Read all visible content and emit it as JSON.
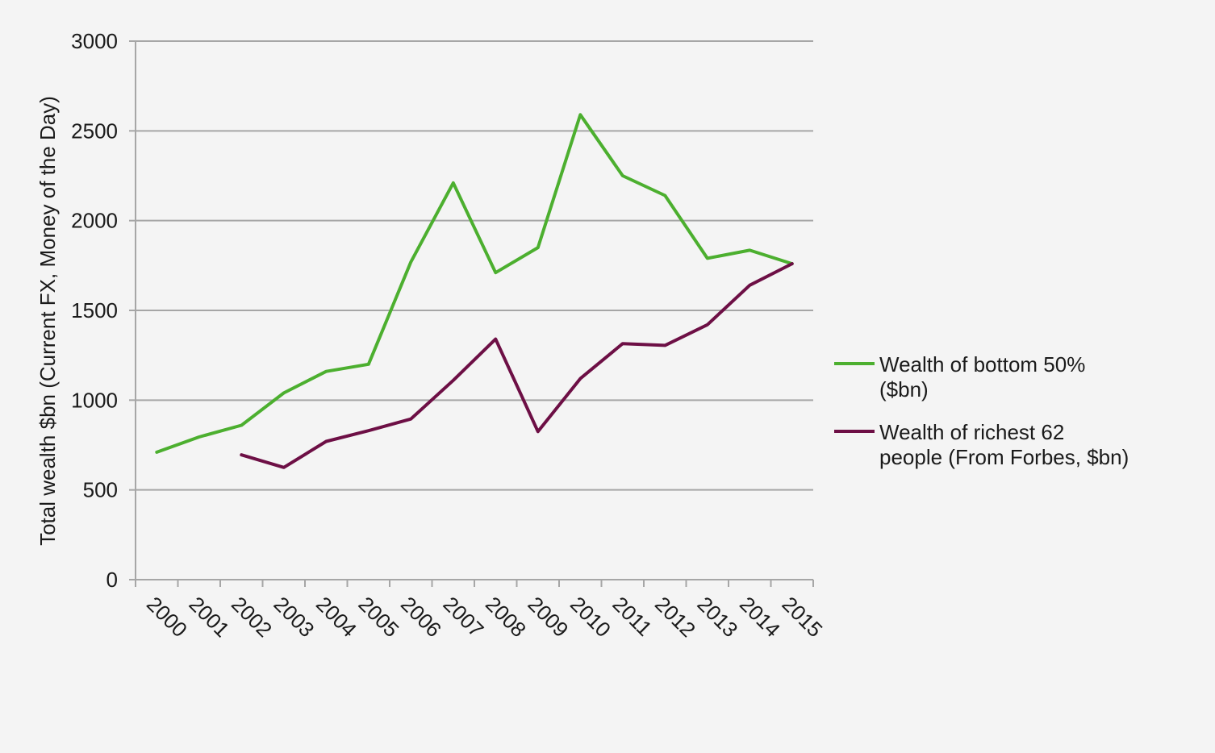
{
  "chart_data": {
    "type": "line",
    "title": "",
    "xlabel": "",
    "ylabel": "Total wealth $bn (Current FX, Money of the Day)",
    "ylim": [
      0,
      3000
    ],
    "yticks": [
      0,
      500,
      1000,
      1500,
      2000,
      2500,
      3000
    ],
    "categories": [
      "2000",
      "2001",
      "2002",
      "2003",
      "2004",
      "2005",
      "2006",
      "2007",
      "2008",
      "2009",
      "2010",
      "2011",
      "2012",
      "2013",
      "2014",
      "2015"
    ],
    "grid": "horizontal",
    "legend_position": "right",
    "series": [
      {
        "name": "Wealth of bottom 50% ($bn)",
        "legend_lines": [
          "Wealth of bottom 50%",
          "($bn)"
        ],
        "color": "#4caf2f",
        "values": [
          710,
          795,
          860,
          1040,
          1160,
          1200,
          1770,
          2210,
          1710,
          1850,
          2590,
          2250,
          2140,
          1790,
          1835,
          1760
        ]
      },
      {
        "name": "Wealth of richest 62 people (From Forbes, $bn)",
        "legend_lines": [
          "Wealth of richest 62",
          "people (From Forbes,  $bn)"
        ],
        "color": "#6d0f45",
        "values": [
          null,
          null,
          695,
          625,
          770,
          830,
          895,
          1110,
          1340,
          825,
          1120,
          1315,
          1305,
          1420,
          1640,
          1760
        ]
      }
    ]
  }
}
